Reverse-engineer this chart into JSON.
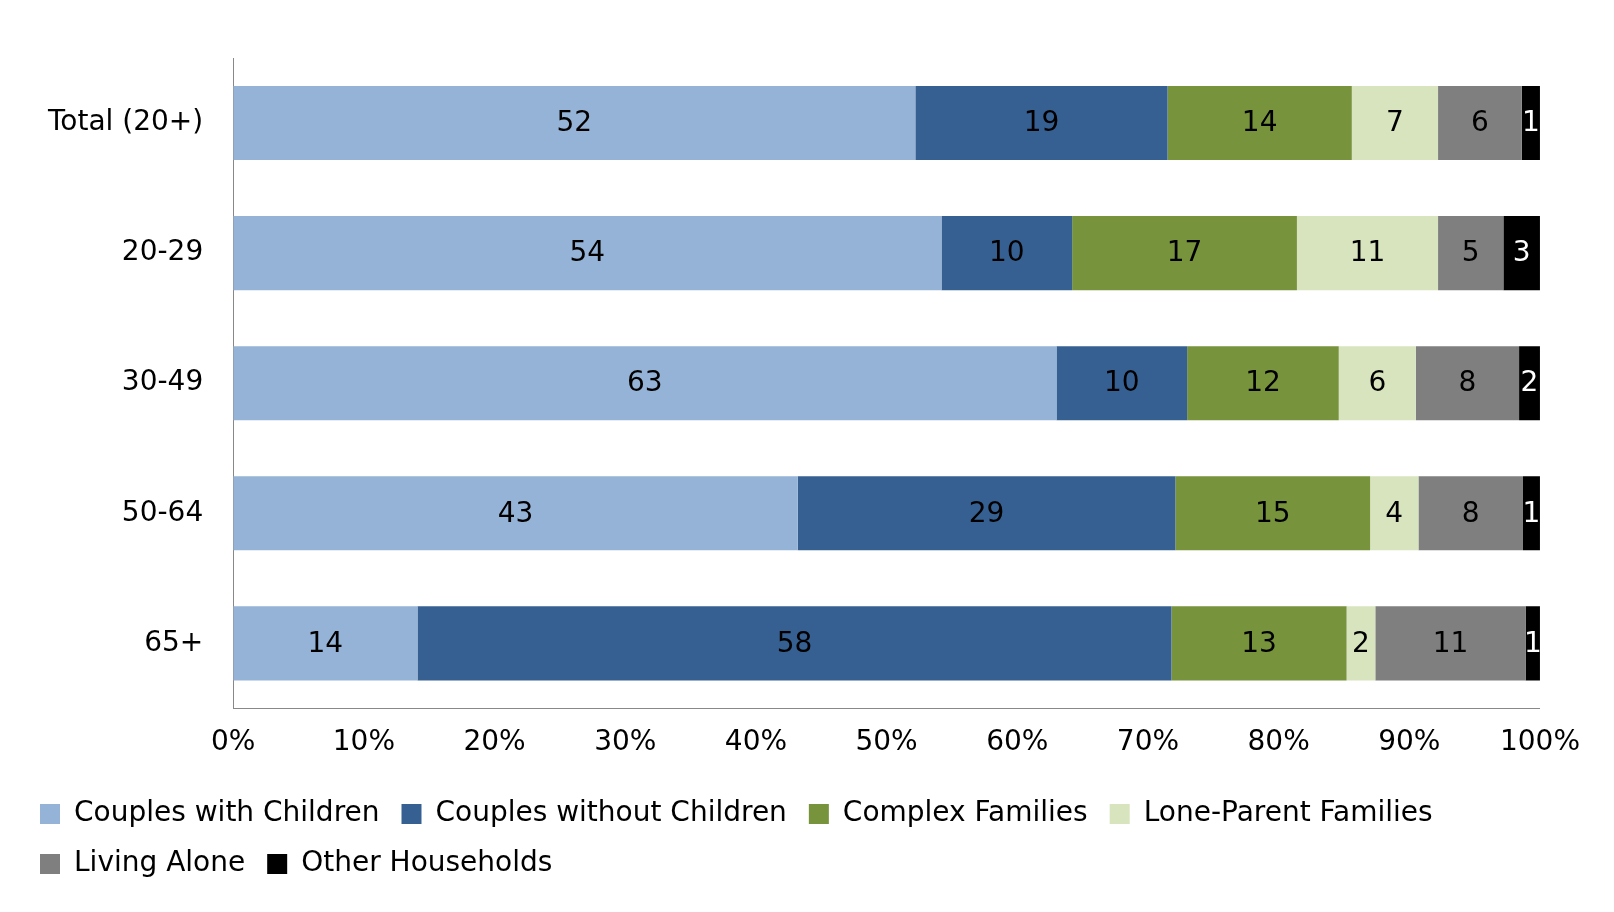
{
  "chart_data": {
    "type": "bar",
    "orientation": "horizontal",
    "stacked": true,
    "categories": [
      "Total (20+)",
      "20-29",
      "30-49",
      "50-64",
      "65+"
    ],
    "series": [
      {
        "name": "Couples with Children",
        "color": "#95b3d7",
        "values": [
          52.2,
          54.2,
          63.0,
          43.2,
          14.1
        ],
        "value_labels": [
          "52",
          "54",
          "63",
          "43",
          "14"
        ]
      },
      {
        "name": "Couples without Children",
        "color": "#366092",
        "values": [
          19.3,
          10.0,
          10.0,
          28.9,
          57.7
        ],
        "value_labels": [
          "19",
          "10",
          "10",
          "29",
          "58"
        ]
      },
      {
        "name": "Complex Families",
        "color": "#77933c",
        "values": [
          14.1,
          17.2,
          11.6,
          14.9,
          13.4
        ],
        "value_labels": [
          "14",
          "17",
          "12",
          "15",
          "13"
        ]
      },
      {
        "name": "Lone-Parent Families",
        "color": "#d7e4bd",
        "values": [
          6.6,
          10.8,
          5.9,
          3.7,
          2.2
        ],
        "value_labels": [
          "7",
          "11",
          "6",
          "4",
          "2"
        ]
      },
      {
        "name": "Living Alone",
        "color": "#7f7f7f",
        "values": [
          6.4,
          5.0,
          7.9,
          8.0,
          11.5
        ],
        "value_labels": [
          "6",
          "5",
          "8",
          "8",
          "11"
        ]
      },
      {
        "name": "Other Households",
        "color": "#000000",
        "values": [
          1.4,
          2.8,
          1.6,
          1.3,
          1.1
        ],
        "value_labels": [
          "1",
          "3",
          "2",
          "1",
          "1"
        ]
      }
    ],
    "xlim": [
      0,
      100
    ],
    "xticks": [
      {
        "value": 0,
        "label": "0%"
      },
      {
        "value": 10,
        "label": "10%"
      },
      {
        "value": 20,
        "label": "20%"
      },
      {
        "value": 30,
        "label": "30%"
      },
      {
        "value": 40,
        "label": "40%"
      },
      {
        "value": 50,
        "label": "50%"
      },
      {
        "value": 60,
        "label": "60%"
      },
      {
        "value": 70,
        "label": "70%"
      },
      {
        "value": 80,
        "label": "80%"
      },
      {
        "value": 90,
        "label": "90%"
      },
      {
        "value": 100,
        "label": "100%"
      }
    ],
    "grid": false,
    "legend": "bottom"
  }
}
